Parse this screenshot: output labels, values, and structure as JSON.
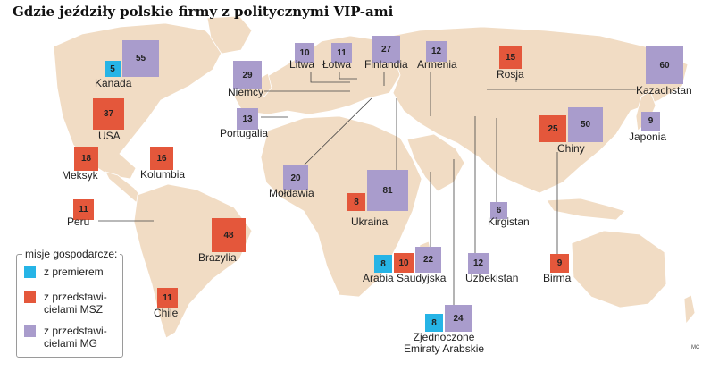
{
  "title": "Gdzie jeździły polskie firmy z politycznymi VIP-ami",
  "credit": "MC",
  "colors": {
    "land": "#f1dcc4",
    "land_dim": "#e8e8e8",
    "premier": "#26b4e6",
    "msz": "#e4573b",
    "mg": "#a99ccc",
    "leader": "#444444"
  },
  "legend": {
    "title": "misje gospodarcze:",
    "items": [
      {
        "key": "premier",
        "label": "z premierem"
      },
      {
        "key": "msz",
        "label": "z przedstawi-\ncielami MSZ"
      },
      {
        "key": "mg",
        "label": "z przedstawi-\ncielami MG"
      }
    ]
  },
  "countries": [
    {
      "name": "Kanada",
      "values": {
        "premier": 5,
        "mg": 55
      }
    },
    {
      "name": "USA",
      "values": {
        "msz": 37
      }
    },
    {
      "name": "Meksyk",
      "values": {
        "msz": 18
      }
    },
    {
      "name": "Kolumbia",
      "values": {
        "msz": 16
      }
    },
    {
      "name": "Peru",
      "values": {
        "msz": 11
      }
    },
    {
      "name": "Brazylia",
      "values": {
        "msz": 48
      }
    },
    {
      "name": "Chile",
      "values": {
        "msz": 11
      }
    },
    {
      "name": "Litwa",
      "values": {
        "mg": 10
      }
    },
    {
      "name": "Łotwa",
      "values": {
        "mg": 11
      }
    },
    {
      "name": "Finlandia",
      "values": {
        "mg": 27
      }
    },
    {
      "name": "Armenia",
      "values": {
        "mg": 12
      }
    },
    {
      "name": "Rosja",
      "values": {
        "msz": 15
      }
    },
    {
      "name": "Kazachstan",
      "values": {
        "mg": 60
      }
    },
    {
      "name": "Niemcy",
      "values": {
        "mg": 29
      }
    },
    {
      "name": "Portugalia",
      "values": {
        "mg": 13
      }
    },
    {
      "name": "Mołdawia",
      "values": {
        "mg": 20
      }
    },
    {
      "name": "Ukraina",
      "values": {
        "msz": 8,
        "mg": 81
      }
    },
    {
      "name": "Kirgistan",
      "values": {
        "mg": 6
      }
    },
    {
      "name": "Chiny",
      "values": {
        "msz": 25,
        "mg": 50
      }
    },
    {
      "name": "Japonia",
      "values": {
        "mg": 9
      }
    },
    {
      "name": "Arabia Saudyjska",
      "values": {
        "premier": 8,
        "msz": 10,
        "mg": 22
      }
    },
    {
      "name": "Uzbekistan",
      "values": {
        "mg": 12
      }
    },
    {
      "name": "Birma",
      "values": {
        "msz": 9
      }
    },
    {
      "name": "Zjednoczone\nEmiraty Arabskie",
      "values": {
        "premier": 8,
        "mg": 24
      }
    }
  ]
}
